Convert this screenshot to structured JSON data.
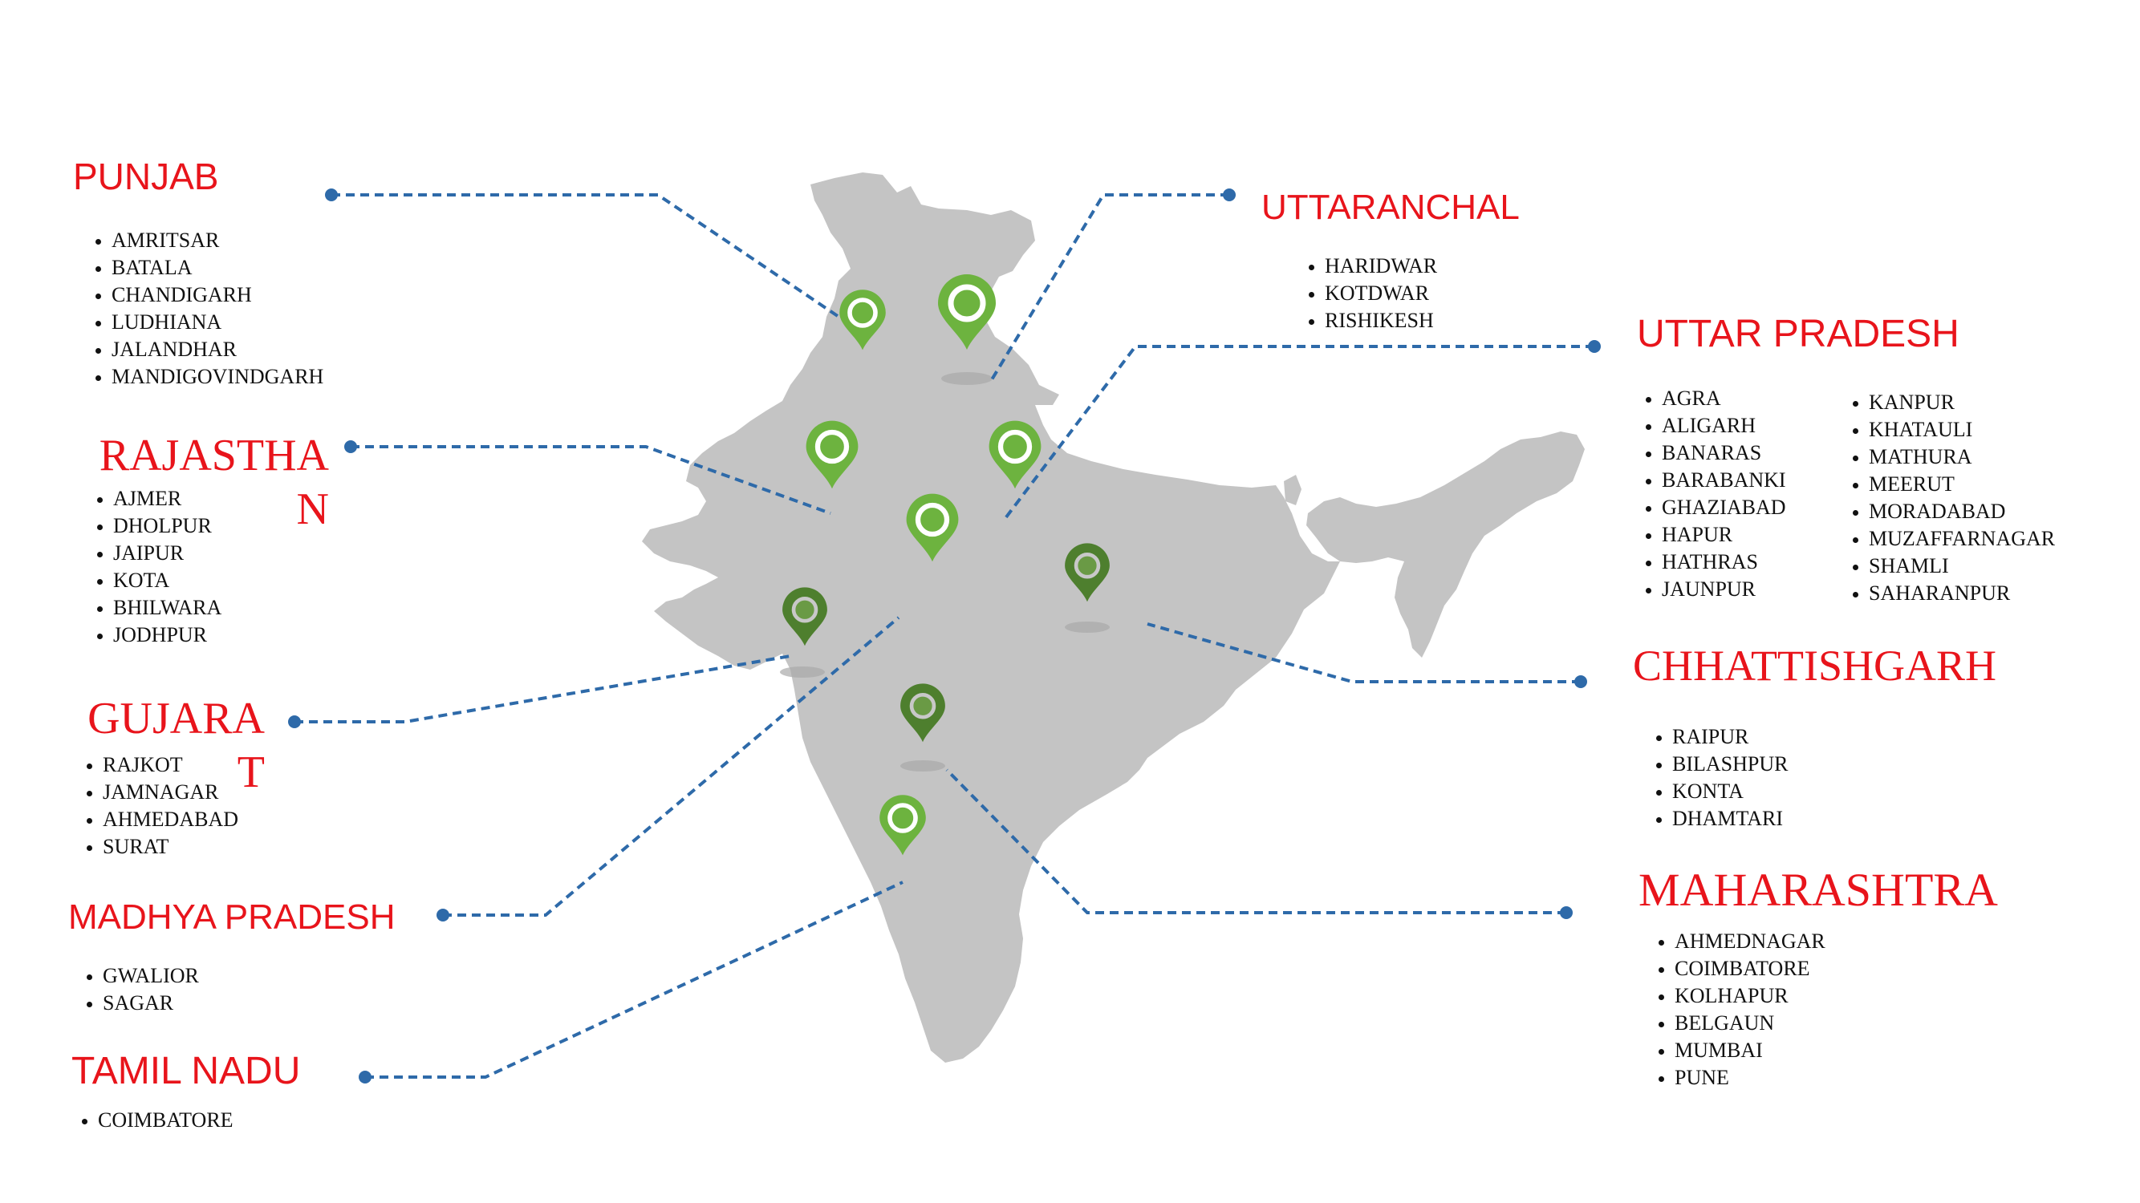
{
  "colors": {
    "title_red": "#e8141b",
    "connector_blue": "#2e6aa9",
    "map_grey": "#c4c4c4",
    "pin_light_green": "#6db33f",
    "pin_dark_green": "#4e7f2e"
  },
  "states": {
    "punjab": {
      "title": "PUNJAB",
      "cities": [
        "AMRITSAR",
        "BATALA",
        "CHANDIGARH",
        "LUDHIANA",
        "JALANDHAR",
        "MANDIGOVINDGARH"
      ]
    },
    "rajasthan": {
      "title": "RAJASTHAN",
      "cities": [
        "AJMER",
        "DHOLPUR",
        "JAIPUR",
        "KOTA",
        "BHILWARA",
        "JODHPUR"
      ]
    },
    "gujarat": {
      "title": "GUJARAT",
      "cities": [
        "RAJKOT",
        "JAMNAGAR",
        "AHMEDABAD",
        "SURAT"
      ]
    },
    "madhya_pradesh": {
      "title": "MADHYA PRADESH",
      "cities": [
        "GWALIOR",
        "SAGAR"
      ]
    },
    "tamil_nadu": {
      "title": "TAMIL NADU",
      "cities": [
        "COIMBATORE"
      ]
    },
    "uttaranchal": {
      "title": "UTTARANCHAL",
      "cities": [
        "HARIDWAR",
        "KOTDWAR",
        "RISHIKESH"
      ]
    },
    "uttar_pradesh": {
      "title": "UTTAR PRADESH",
      "cities_col1": [
        "AGRA",
        "ALIGARH",
        "BANARAS",
        "BARABANKI",
        "GHAZIABAD",
        "HAPUR",
        "HATHRAS",
        "JAUNPUR"
      ],
      "cities_col2": [
        "KANPUR",
        "KHATAULI",
        "MATHURA",
        "MEERUT",
        "MORADABAD",
        "MUZAFFARNAGAR",
        "SHAMLI",
        "SAHARANPUR"
      ]
    },
    "chhattishgarh": {
      "title": "CHHATTISHGARH",
      "cities": [
        "RAIPUR",
        "BILASHPUR",
        "KONTA",
        "DHAMTARI"
      ]
    },
    "maharashtra": {
      "title": "MAHARASHTRA",
      "cities": [
        "AHMEDNAGAR",
        "COIMBATORE",
        "KOLHAPUR",
        "BELGAUN",
        "MUMBAI",
        "PUNE"
      ]
    }
  },
  "map": {
    "pin_icon": "map-pin-icon",
    "country_shape": "india-map"
  }
}
